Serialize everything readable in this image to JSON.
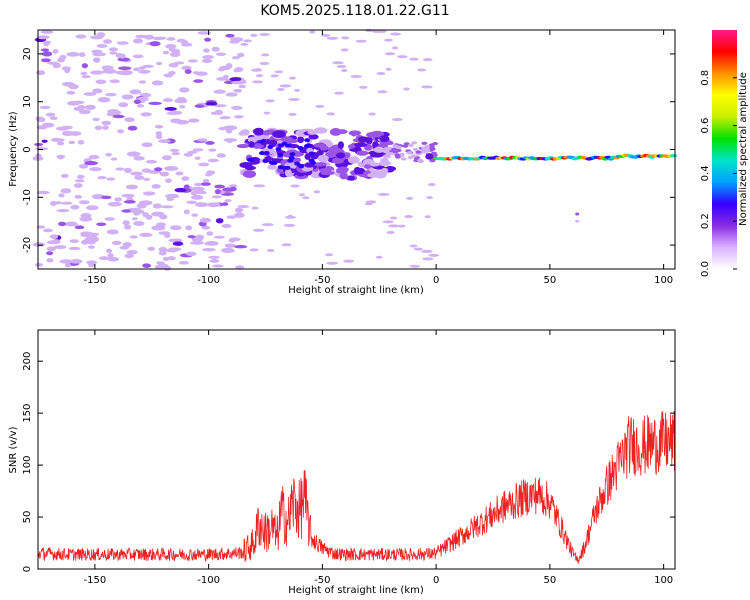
{
  "title": "KOM5.2025.118.01.22.G11",
  "chart_data": [
    {
      "type": "heatmap",
      "xlabel": "Height of straight line (km)",
      "ylabel": "Frequency (Hz)",
      "xlim": [
        -175,
        105
      ],
      "ylim": [
        -25,
        25
      ],
      "xticks": [
        -150,
        -100,
        -50,
        0,
        50,
        100
      ],
      "yticks": [
        -20,
        -10,
        0,
        10,
        20
      ],
      "colorbar": {
        "label": "Normalized spectral amplitude",
        "range": [
          0,
          1
        ],
        "ticks": [
          "0.0",
          "0.2",
          "0.4",
          "0.6",
          "0.8"
        ],
        "colors": [
          "#ffffff",
          "#d9b3ff",
          "#8a2be2",
          "#3200ff",
          "#00a0ff",
          "#00e5c8",
          "#00e000",
          "#c8f000",
          "#ffff00",
          "#ff9000",
          "#ff0000",
          "#ff1a8c"
        ]
      },
      "regions": [
        {
          "x_range": [
            -175,
            -85
          ],
          "freq_range": [
            -25,
            25
          ],
          "amplitude": "low, scattered"
        },
        {
          "x_range": [
            -85,
            -20
          ],
          "freq_range": [
            -6,
            4
          ],
          "amplitude": "moderate"
        },
        {
          "x_range": [
            -20,
            0
          ],
          "freq_range": [
            -3,
            2
          ],
          "amplitude": "moderate"
        },
        {
          "x_range": [
            0,
            105
          ],
          "freq_range": [
            -3,
            0
          ],
          "amplitude": "high, continuous line near -2 Hz"
        }
      ]
    },
    {
      "type": "line",
      "xlabel": "Height of straight line (km)",
      "ylabel": "SNR (v/v)",
      "xlim": [
        -175,
        105
      ],
      "ylim": [
        0,
        230
      ],
      "xticks": [
        -150,
        -100,
        -50,
        0,
        50,
        100
      ],
      "yticks": [
        0,
        50,
        100,
        150,
        200
      ],
      "series": [
        {
          "color": "#ee2020",
          "x": [
            -175,
            -160,
            -150,
            -140,
            -130,
            -120,
            -110,
            -100,
            -90,
            -85,
            -80,
            -78,
            -75,
            -72,
            -70,
            -68,
            -65,
            -63,
            -60,
            -58,
            -55,
            -50,
            -45,
            -40,
            -30,
            -20,
            -10,
            0,
            10,
            20,
            30,
            40,
            45,
            50,
            55,
            60,
            62,
            65,
            70,
            75,
            80,
            85,
            90,
            95,
            100,
            105
          ],
          "values": [
            15,
            14,
            14,
            14,
            14,
            14,
            14,
            14,
            15,
            16,
            25,
            45,
            35,
            40,
            30,
            55,
            45,
            65,
            55,
            70,
            30,
            20,
            15,
            14,
            14,
            14,
            14,
            15,
            30,
            45,
            60,
            70,
            72,
            65,
            40,
            15,
            8,
            20,
            55,
            80,
            100,
            120,
            118,
            120,
            122,
            122
          ]
        }
      ]
    }
  ]
}
